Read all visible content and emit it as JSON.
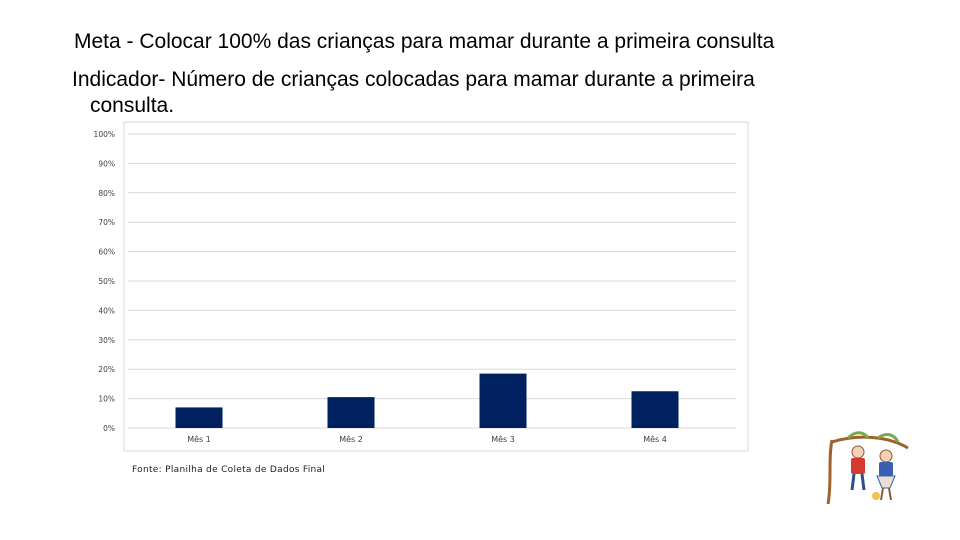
{
  "slide": {
    "goal_line": "Meta - Colocar 100% das crianças para mamar durante a primeira consulta",
    "indicator_line1": "Indicador- Número de crianças colocadas para mamar durante a primeira",
    "indicator_line2": "consulta.",
    "source_note": "Fonte: Planilha de Coleta de Dados Final"
  },
  "colors": {
    "bar": "#002060",
    "grid": "#d9d9d9",
    "frame": "#d9d9d9"
  },
  "chart_data": {
    "type": "bar",
    "title": "",
    "xlabel": "",
    "ylabel": "",
    "categories": [
      "Mês 1",
      "Mês 2",
      "Mês 3",
      "Mês 4"
    ],
    "values": [
      7,
      10.5,
      18.5,
      12.5
    ],
    "value_unit": "%",
    "ylim": [
      0,
      100
    ],
    "yticks": [
      "0%",
      "10%",
      "20%",
      "30%",
      "40%",
      "50%",
      "60%",
      "70%",
      "80%",
      "90%",
      "100%"
    ],
    "grid": true,
    "legend": "none"
  },
  "illustration": {
    "icon": "children-on-tree-branch-icon"
  }
}
